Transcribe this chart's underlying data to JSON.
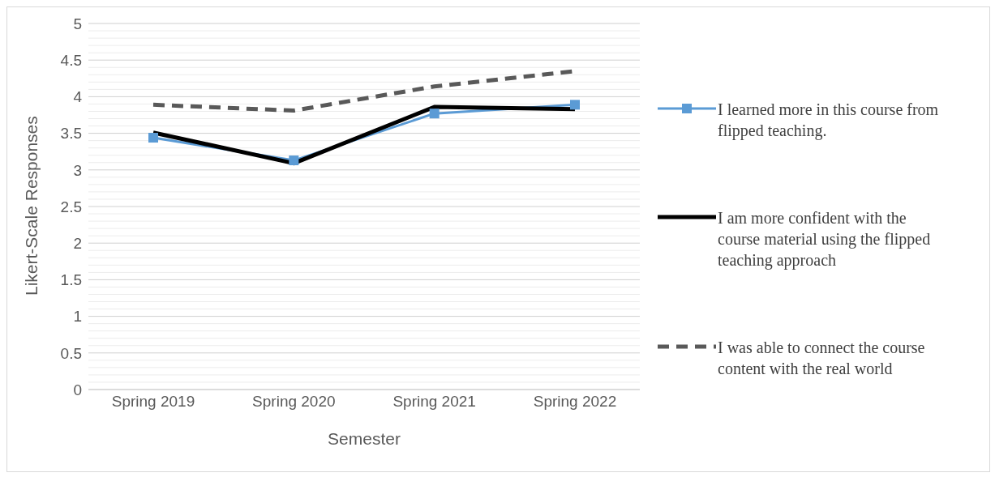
{
  "chart_data": {
    "type": "line",
    "xlabel": "Semester",
    "ylabel": "Likert-Scale Responses",
    "categories": [
      "Spring 2019",
      "Spring 2020",
      "Spring 2021",
      "Spring 2022"
    ],
    "series": [
      {
        "name": "I learned more in this course from flipped teaching.",
        "color": "#5b9bd5",
        "values": [
          3.44,
          3.13,
          3.77,
          3.89
        ],
        "marker": "square",
        "line_style": "solid"
      },
      {
        "name": "I am more confident with the course material using the flipped teaching approach",
        "color": "#000000",
        "values": [
          3.51,
          3.09,
          3.86,
          3.83
        ],
        "marker": "none",
        "line_style": "solid"
      },
      {
        "name": "I was able to connect the course content with the real world",
        "color": "#595959",
        "values": [
          3.89,
          3.81,
          4.14,
          4.35
        ],
        "marker": "none",
        "line_style": "dashed"
      }
    ],
    "ylim": [
      0,
      5
    ],
    "yticks": [
      0,
      {
        "value": 0.1,
        "label": null
      },
      {
        "value": 0.2,
        "label": null
      },
      {
        "value": 0.3,
        "label": null
      },
      {
        "value": 0.4,
        "label": null
      },
      0.5,
      {
        "value": 0.6,
        "label": null
      },
      {
        "value": 0.7,
        "label": null
      },
      {
        "value": 0.8,
        "label": null
      },
      {
        "value": 0.9,
        "label": null
      },
      1,
      {
        "value": 1.1,
        "label": null
      },
      {
        "value": 1.2,
        "label": null
      },
      {
        "value": 1.3,
        "label": null
      },
      {
        "value": 1.4,
        "label": null
      },
      1.5,
      {
        "value": 1.6,
        "label": null
      },
      {
        "value": 1.7,
        "label": null
      },
      {
        "value": 1.8,
        "label": null
      },
      {
        "value": 1.9,
        "label": null
      },
      2,
      {
        "value": 2.1,
        "label": null
      },
      {
        "value": 2.2,
        "label": null
      },
      {
        "value": 2.3,
        "label": null
      },
      {
        "value": 2.4,
        "label": null
      },
      2.5,
      {
        "value": 2.6,
        "label": null
      },
      {
        "value": 2.7,
        "label": null
      },
      {
        "value": 2.8,
        "label": null
      },
      {
        "value": 2.9,
        "label": null
      },
      3,
      {
        "value": 3.1,
        "label": null
      },
      {
        "value": 3.2,
        "label": null
      },
      {
        "value": 3.3,
        "label": null
      },
      {
        "value": 3.4,
        "label": null
      },
      3.5,
      {
        "value": 3.6,
        "label": null
      },
      {
        "value": 3.7,
        "label": null
      },
      {
        "value": 3.8,
        "label": null
      },
      {
        "value": 3.9,
        "label": null
      },
      4,
      {
        "value": 4.1,
        "label": null
      },
      {
        "value": 4.2,
        "label": null
      },
      {
        "value": 4.3,
        "label": null
      },
      {
        "value": 4.4,
        "label": null
      },
      4.5,
      {
        "value": 4.6,
        "label": null
      },
      {
        "value": 4.7,
        "label": null
      },
      {
        "value": 4.8,
        "label": null
      },
      {
        "value": 4.9,
        "label": null
      },
      5
    ],
    "grid": "y",
    "legend": "right"
  }
}
